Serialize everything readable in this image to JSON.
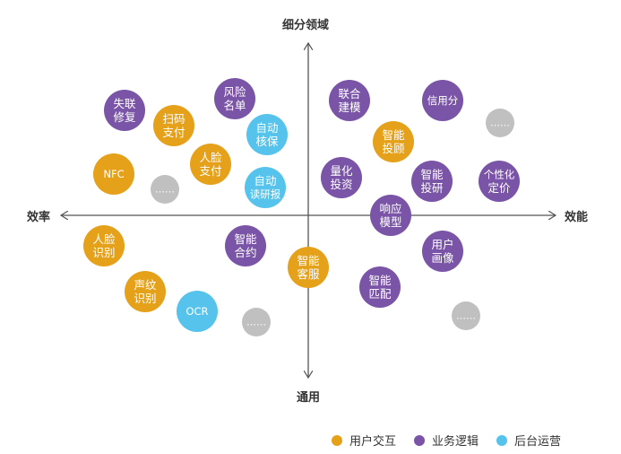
{
  "axes": {
    "top": "细分领域",
    "bottom": "通用",
    "left": "效率",
    "right": "效能"
  },
  "colors": {
    "user_interaction": "#E6A11A",
    "business_logic": "#7A54A6",
    "backend_ops": "#56C3EC",
    "placeholder": "#C0C0C0",
    "axis": "#555555"
  },
  "legend": [
    {
      "label": "用户交互",
      "color": "#E6A11A"
    },
    {
      "label": "业务逻辑",
      "color": "#7A54A6"
    },
    {
      "label": "后台运营",
      "color": "#56C3EC"
    }
  ],
  "nodes": [
    {
      "id": "shilian-xiufu",
      "lines": [
        "失联",
        "修复"
      ],
      "category": "business_logic"
    },
    {
      "id": "fengxian-mingdan",
      "lines": [
        "风险",
        "名单"
      ],
      "category": "business_logic"
    },
    {
      "id": "saoma-zhifu",
      "lines": [
        "扫码",
        "支付"
      ],
      "category": "user_interaction"
    },
    {
      "id": "zidong-hebao",
      "lines": [
        "自动",
        "核保"
      ],
      "category": "backend_ops"
    },
    {
      "id": "renlian-zhifu",
      "lines": [
        "人脸",
        "支付"
      ],
      "category": "user_interaction"
    },
    {
      "id": "nfc",
      "lines": [
        "NFC"
      ],
      "category": "user_interaction"
    },
    {
      "id": "more-1",
      "lines": [
        "……"
      ],
      "category": "placeholder"
    },
    {
      "id": "zidong-duyanbao",
      "lines": [
        "自动",
        "读研报"
      ],
      "category": "backend_ops"
    },
    {
      "id": "lianhe-jianmo",
      "lines": [
        "联合",
        "建模"
      ],
      "category": "business_logic"
    },
    {
      "id": "xinyongfen",
      "lines": [
        "信用分"
      ],
      "category": "business_logic"
    },
    {
      "id": "more-2",
      "lines": [
        "……"
      ],
      "category": "placeholder"
    },
    {
      "id": "zhineng-tougu",
      "lines": [
        "智能",
        "投顾"
      ],
      "category": "user_interaction"
    },
    {
      "id": "lianghua-touzi",
      "lines": [
        "量化",
        "投资"
      ],
      "category": "business_logic"
    },
    {
      "id": "zhineng-touyan",
      "lines": [
        "智能",
        "投研"
      ],
      "category": "business_logic"
    },
    {
      "id": "gexinghua-dingjia",
      "lines": [
        "个性化",
        "定价"
      ],
      "category": "business_logic"
    },
    {
      "id": "xiangying-moxing",
      "lines": [
        "响应",
        "模型"
      ],
      "category": "business_logic"
    },
    {
      "id": "renlian-shibie",
      "lines": [
        "人脸",
        "识别"
      ],
      "category": "user_interaction"
    },
    {
      "id": "zhineng-heyue",
      "lines": [
        "智能",
        "合约"
      ],
      "category": "business_logic"
    },
    {
      "id": "zhineng-kefu",
      "lines": [
        "智能",
        "客服"
      ],
      "category": "user_interaction"
    },
    {
      "id": "yonghu-huaxiang",
      "lines": [
        "用户",
        "画像"
      ],
      "category": "business_logic"
    },
    {
      "id": "shengwen-shibie",
      "lines": [
        "声纹",
        "识别"
      ],
      "category": "user_interaction"
    },
    {
      "id": "ocr",
      "lines": [
        "OCR"
      ],
      "category": "backend_ops"
    },
    {
      "id": "more-3",
      "lines": [
        "……"
      ],
      "category": "placeholder"
    },
    {
      "id": "zhineng-pipei",
      "lines": [
        "智能",
        "匹配"
      ],
      "category": "business_logic"
    },
    {
      "id": "more-4",
      "lines": [
        "……"
      ],
      "category": "placeholder"
    }
  ]
}
